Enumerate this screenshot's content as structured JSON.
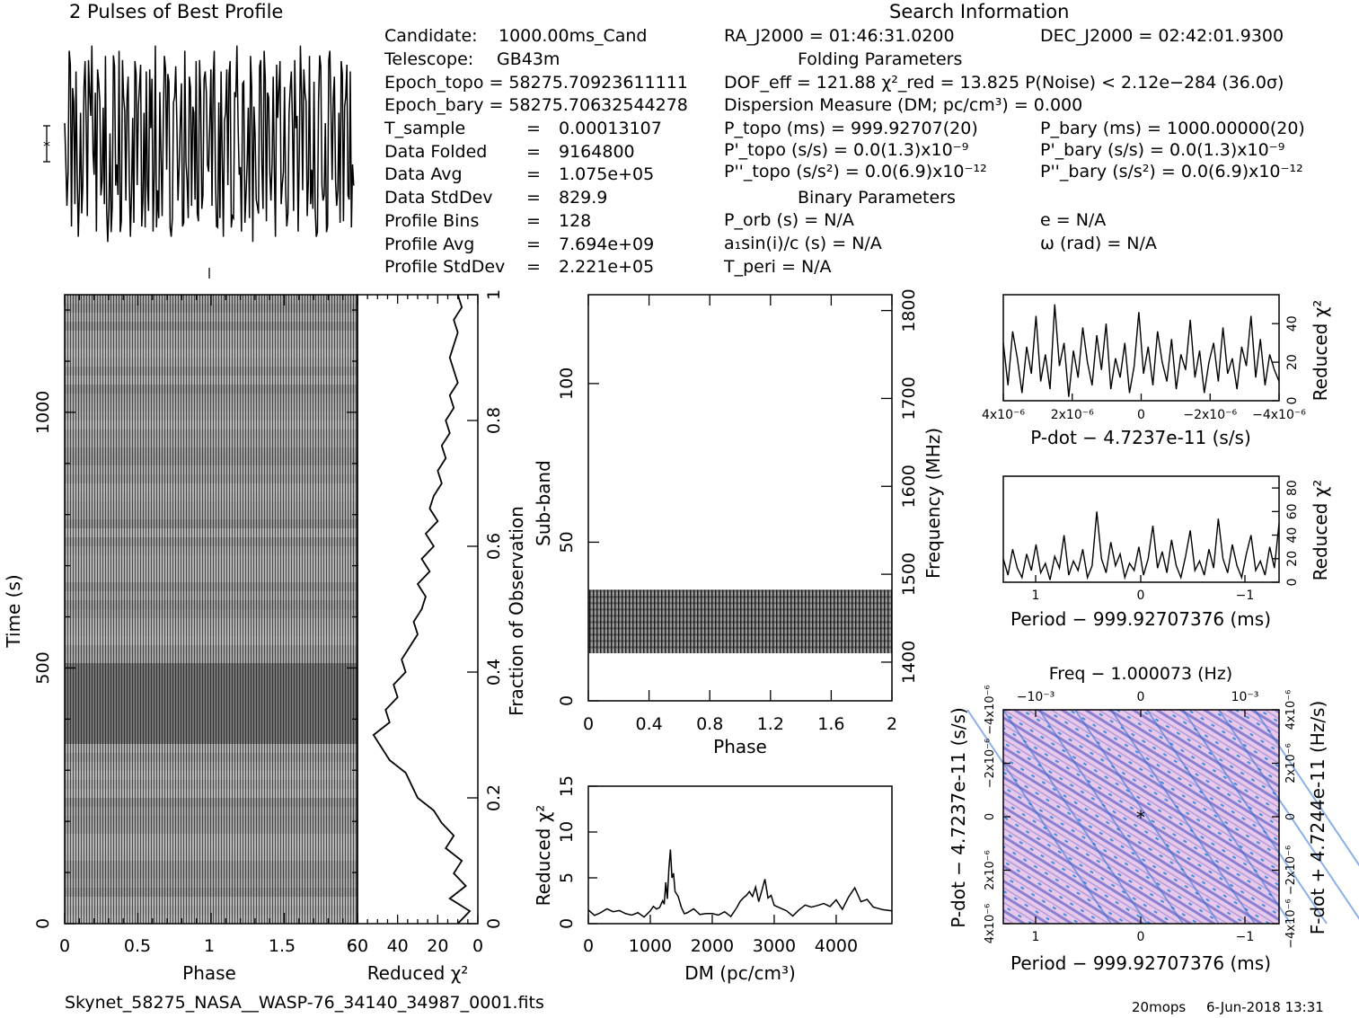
{
  "title_profile": "2 Pulses of Best Profile",
  "title_search": "Search Information",
  "info_left": [
    [
      "Candidate:",
      "1000.00ms_Cand"
    ],
    [
      "Telescope:",
      "GB43m"
    ]
  ],
  "epoch_topo": "Epoch_topo = 58275.70923611111",
  "epoch_bary": "Epoch_bary = 58275.70632544278",
  "info_stats": [
    {
      "label": "T_sample",
      "value": "0.00013107"
    },
    {
      "label": "Data Folded",
      "value": "9164800"
    },
    {
      "label": "Data Avg",
      "value": "1.075e+05"
    },
    {
      "label": "Data StdDev",
      "value": "829.9"
    },
    {
      "label": "Profile Bins",
      "value": "128"
    },
    {
      "label": "Profile Avg",
      "value": "7.694e+09"
    },
    {
      "label": "Profile StdDev",
      "value": "2.221e+05"
    }
  ],
  "ra": "RA_J2000 = 01:46:31.0200",
  "dec": "DEC_J2000 = 02:42:01.9300",
  "folding_title": "Folding Parameters",
  "dof_line": "DOF_eff = 121.88  χ²_red = 13.825  P(Noise) < 2.12e−284  (36.0σ)",
  "dm_line": "Dispersion Measure (DM; pc/cm³) = 0.000",
  "p_topo": "P_topo (ms) =  999.92707(20)",
  "p_bary": "P_bary (ms) =  1000.00000(20)",
  "pd_topo": "P'_topo (s/s) = 0.0(1.3)x10⁻⁹",
  "pd_bary": "P'_bary (s/s) = 0.0(1.3)x10⁻⁹",
  "pdd_topo": "P''_topo (s/s²) = 0.0(6.9)x10⁻¹²",
  "pdd_bary": "P''_bary (s/s²) = 0.0(6.9)x10⁻¹²",
  "binary_title": "Binary Parameters",
  "binary": [
    "P_orb (s) = N/A",
    "a₁sin(i)/c (s) = N/A",
    "T_peri = N/A",
    "e = N/A",
    "ω (rad) = N/A"
  ],
  "footer_file": "Skynet_58275_NASA__WASP-76_34140_34987_0001.fits",
  "footer_user": "20mops",
  "footer_date": "6-Jun-2018 13:31",
  "chart_data": [
    {
      "type": "line",
      "name": "profile",
      "title": "2 Pulses of Best Profile",
      "x": [
        0,
        0.0156,
        0.0312,
        0.0469,
        0.0625,
        0.0781,
        0.0938,
        0.1094,
        0.125,
        0.1406,
        0.1562,
        0.1719,
        0.1875,
        0.2031,
        0.2188,
        0.2344,
        0.25,
        0.2656,
        0.2812,
        0.2969,
        0.3125,
        0.3281,
        0.3438,
        0.3594,
        0.375,
        0.3906,
        0.4062,
        0.4219,
        0.4375,
        0.4531,
        0.4688,
        0.4844,
        0.5,
        0.5156,
        0.5312,
        0.5469,
        0.5625,
        0.5781,
        0.5938,
        0.6094,
        0.625,
        0.6406,
        0.6562,
        0.6719,
        0.6875,
        0.7031,
        0.7188,
        0.7344,
        0.75,
        0.7656,
        0.7812,
        0.7969,
        0.8125,
        0.8281,
        0.8438,
        0.8594,
        0.875,
        0.8906,
        0.9062,
        0.9219,
        0.9375,
        0.9531,
        0.9688,
        0.9844
      ],
      "y": [
        0.2,
        -0.6,
        0.9,
        -0.8,
        0.4,
        0.7,
        -0.9,
        0.3,
        -0.4,
        0.8,
        -0.7,
        0.5,
        0.95,
        -0.3,
        -0.85,
        0.6,
        -0.5,
        0.35,
        0.85,
        -0.95,
        0.1,
        -0.6,
        0.75,
        -0.2,
        0.9,
        -0.75,
        0.45,
        -0.55,
        0.65,
        -0.9,
        0.25,
        0.8,
        -0.4,
        0.55,
        -0.8,
        0.3,
        0.7,
        -0.65,
        0.15,
        -0.85,
        0.95,
        -0.45,
        0.5,
        -0.7,
        0.85,
        -0.25,
        0.6,
        -0.9,
        0.4,
        0.75,
        -0.55,
        0.2,
        -0.8,
        0.9,
        -0.35,
        0.65,
        -0.6,
        0.3,
        0.8,
        -0.75,
        0.45,
        -0.5,
        0.7,
        -0.2
      ]
    },
    {
      "type": "heatmap",
      "name": "time-phase",
      "xlabel": "Phase",
      "ylabel": "Time (s)",
      "xlim": [
        0,
        2
      ],
      "ylim": [
        0,
        1230
      ],
      "xticks": [
        "0",
        "0.5",
        "1",
        "1.5"
      ],
      "yticks": [
        "0",
        "500",
        "1000"
      ]
    },
    {
      "type": "line",
      "name": "reduced-chi2-vs-time",
      "xlabel": "Reduced χ²",
      "ylabel": "Fraction of Observation",
      "xlim": [
        60,
        0
      ],
      "ylim": [
        0,
        1
      ],
      "xticks": [
        "60",
        "40",
        "20",
        "0"
      ],
      "yticks": [
        "0",
        "0.2",
        "0.4",
        "0.6",
        "0.8",
        "1"
      ],
      "x": [
        10,
        4,
        14,
        6,
        12,
        8,
        16,
        12,
        18,
        22,
        30,
        36,
        44,
        48,
        52,
        44,
        46,
        40,
        42,
        36,
        38,
        34,
        30,
        32,
        28,
        26,
        30,
        24,
        28,
        22,
        26,
        20,
        24,
        22,
        18,
        20,
        16,
        18,
        14,
        16,
        12,
        14,
        10,
        12,
        14,
        12,
        10,
        12,
        8,
        10
      ],
      "y": [
        0,
        0.02,
        0.04,
        0.06,
        0.08,
        0.1,
        0.12,
        0.14,
        0.16,
        0.18,
        0.2,
        0.24,
        0.26,
        0.28,
        0.3,
        0.32,
        0.34,
        0.36,
        0.38,
        0.4,
        0.42,
        0.44,
        0.46,
        0.48,
        0.5,
        0.52,
        0.54,
        0.56,
        0.58,
        0.6,
        0.62,
        0.64,
        0.66,
        0.68,
        0.7,
        0.72,
        0.74,
        0.76,
        0.78,
        0.8,
        0.82,
        0.84,
        0.86,
        0.88,
        0.9,
        0.92,
        0.94,
        0.96,
        0.98,
        1.0
      ]
    },
    {
      "type": "heatmap",
      "name": "subband-phase",
      "xlabel": "Phase",
      "ylabel": "Sub-band",
      "y2label": "Frequency (MHz)",
      "xlim": [
        0,
        2
      ],
      "ylim": [
        0,
        128
      ],
      "y2lim": [
        1356,
        1818
      ],
      "xticks": [
        "0",
        "0.4",
        "0.8",
        "1.2",
        "1.6",
        "2"
      ],
      "yticks": [
        "0",
        "50",
        "100"
      ],
      "y2ticks": [
        "1400",
        "1500",
        "1600",
        "1700",
        "1800"
      ],
      "filled_band": [
        15,
        35
      ]
    },
    {
      "type": "line",
      "name": "reduced-chi2-vs-dm",
      "xlabel": "DM (pc/cm³)",
      "ylabel": "Reduced χ²",
      "xlim": [
        0,
        4900
      ],
      "ylim": [
        0,
        15
      ],
      "xticks": [
        "0",
        "1000",
        "2000",
        "3000",
        "4000"
      ],
      "yticks": [
        "0",
        "5",
        "10",
        "15"
      ],
      "x": [
        0,
        200,
        400,
        600,
        800,
        1000,
        1100,
        1200,
        1250,
        1300,
        1350,
        1400,
        1500,
        1600,
        1800,
        2000,
        2200,
        2400,
        2500,
        2600,
        2700,
        2800,
        2900,
        3000,
        3200,
        3400,
        3600,
        3800,
        4000,
        4200,
        4400,
        4600,
        4900
      ],
      "y": [
        1.5,
        1.2,
        1.3,
        1.1,
        1.2,
        1.4,
        1.6,
        2.5,
        4.5,
        6.0,
        5.0,
        3.5,
        1.8,
        1.2,
        1.0,
        1.1,
        1.3,
        1.8,
        2.8,
        3.5,
        4.0,
        3.6,
        2.8,
        2.0,
        1.4,
        1.5,
        1.8,
        2.2,
        2.6,
        2.9,
        2.4,
        1.8,
        1.4
      ]
    },
    {
      "type": "line",
      "name": "reduced-chi2-vs-pdot",
      "xlabel": "P-dot − 4.7237e-11 (s/s)",
      "ylabel": "Reduced χ²",
      "ylim": [
        0,
        55
      ],
      "xticks": [
        "4x10⁻⁶",
        "2x10⁻⁶",
        "0",
        "−2x10⁻⁶",
        "−4x10⁻⁶"
      ],
      "yticks": [
        "0",
        "20",
        "40"
      ],
      "values": [
        30,
        8,
        36,
        22,
        4,
        28,
        14,
        44,
        10,
        24,
        6,
        50,
        18,
        30,
        2,
        26,
        12,
        38,
        20,
        8,
        34,
        16,
        40,
        6,
        22,
        12,
        30,
        4,
        18,
        46,
        14,
        28,
        8,
        36,
        20,
        10,
        32,
        6,
        24,
        16,
        42,
        12,
        26,
        4,
        20,
        30,
        10,
        38,
        14,
        22,
        6,
        28,
        18,
        44,
        12,
        32,
        8,
        24,
        16,
        10
      ]
    },
    {
      "type": "line",
      "name": "reduced-chi2-vs-period",
      "xlabel": "Period − 999.92707376 (ms)",
      "ylabel": "Reduced χ²",
      "ylim": [
        0,
        90
      ],
      "xticks": [
        "1",
        "0",
        "−1"
      ],
      "yticks": [
        "0",
        "20",
        "40",
        "60",
        "80"
      ],
      "values": [
        20,
        6,
        28,
        12,
        4,
        24,
        10,
        32,
        8,
        16,
        2,
        22,
        12,
        40,
        6,
        18,
        10,
        28,
        4,
        14,
        60,
        20,
        8,
        34,
        14,
        24,
        4,
        16,
        10,
        30,
        6,
        20,
        48,
        12,
        26,
        8,
        36,
        14,
        4,
        22,
        44,
        10,
        18,
        6,
        28,
        12,
        54,
        20,
        8,
        32,
        14,
        4,
        24,
        40,
        10,
        18,
        6,
        30,
        12,
        50
      ]
    },
    {
      "type": "heatmap",
      "name": "period-pdot-plane",
      "title": "Freq − 1.000073 (Hz)",
      "xlabel": "Period − 999.92707376 (ms)",
      "ylabel": "P-dot − 4.7237e-11 (s/s)",
      "y2label": "F-dot + 4.7244e-11 (Hz/s)",
      "xticks": [
        "1",
        "0",
        "−1"
      ],
      "x2ticks": [
        "−10⁻³",
        "0",
        "10⁻³"
      ],
      "yticks": [
        "4x10⁻⁶",
        "2x10⁻⁶",
        "0",
        "−2x10⁻⁶",
        "−4x10⁻⁶"
      ],
      "y2ticks": [
        "−4x10⁻⁶",
        "−2x10⁻⁶",
        "0",
        "2x10⁻⁶",
        "4x10⁻⁶"
      ]
    }
  ]
}
